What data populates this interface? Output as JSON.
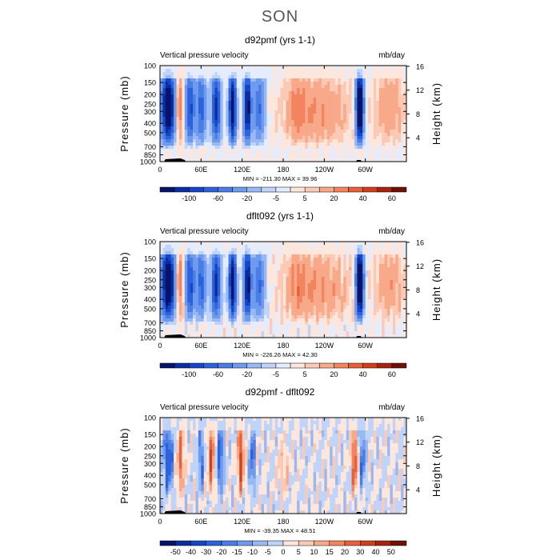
{
  "figure_title": "SON",
  "colors": {
    "frame": "#000000",
    "title_text": "#555555"
  },
  "chart_data": [
    {
      "type": "heatmap",
      "title": "d92pmf (yrs 1-1)",
      "left_label": "Vertical pressure velocity",
      "right_label": "mb/day",
      "ylabel": "Pressure (mb)",
      "ylabel_right": "Height (km)",
      "x_ticks": [
        "0",
        "60E",
        "120E",
        "180",
        "120W",
        "60W"
      ],
      "x_tick_lon": [
        0,
        60,
        120,
        180,
        240,
        300
      ],
      "xlim": [
        0,
        360
      ],
      "y_ticks": [
        "100",
        "150",
        "200",
        "250",
        "300",
        "400",
        "500",
        "700",
        "850",
        "1000"
      ],
      "y_tick_p": [
        100,
        150,
        200,
        250,
        300,
        400,
        500,
        700,
        850,
        1000
      ],
      "ylim": [
        100,
        1000
      ],
      "height_ticks": [
        "16",
        "12",
        "8",
        "4"
      ],
      "height_tick_km": [
        16,
        12,
        8,
        4
      ],
      "stats": "MIN = -211.30   MAX =  39.96",
      "colorbar_labels": [
        "-100",
        "-60",
        "-20",
        "-5",
        "5",
        "20",
        "40",
        "60"
      ],
      "levels": [
        -120,
        -100,
        -80,
        -60,
        -40,
        -20,
        -10,
        -5,
        0,
        5,
        10,
        20,
        30,
        40,
        50,
        60
      ],
      "colorbar_colors": [
        "#08136b",
        "#0a2ea0",
        "#1546c8",
        "#2c62dd",
        "#4a7ee6",
        "#6f9bee",
        "#98b9f4",
        "#c0d4fa",
        "#e4ecfd",
        "#fde6dc",
        "#fccab4",
        "#f8a989",
        "#f2855f",
        "#e8603a",
        "#d03f1c",
        "#a8240c",
        "#6e1004"
      ]
    },
    {
      "type": "heatmap",
      "title": "dflt092 (yrs 1-1)",
      "left_label": "Vertical pressure velocity",
      "right_label": "mb/day",
      "ylabel": "Pressure (mb)",
      "ylabel_right": "Height (km)",
      "x_ticks": [
        "0",
        "60E",
        "120E",
        "180",
        "120W",
        "60W"
      ],
      "x_tick_lon": [
        0,
        60,
        120,
        180,
        240,
        300
      ],
      "xlim": [
        0,
        360
      ],
      "y_ticks": [
        "100",
        "150",
        "200",
        "250",
        "300",
        "400",
        "500",
        "700",
        "850",
        "1000"
      ],
      "y_tick_p": [
        100,
        150,
        200,
        250,
        300,
        400,
        500,
        700,
        850,
        1000
      ],
      "ylim": [
        100,
        1000
      ],
      "height_ticks": [
        "16",
        "12",
        "8",
        "4"
      ],
      "height_tick_km": [
        16,
        12,
        8,
        4
      ],
      "stats": "MIN = -226.26   MAX =  42.30",
      "colorbar_labels": [
        "-100",
        "-60",
        "-20",
        "-5",
        "5",
        "20",
        "40",
        "60"
      ],
      "levels": [
        -120,
        -100,
        -80,
        -60,
        -40,
        -20,
        -10,
        -5,
        0,
        5,
        10,
        20,
        30,
        40,
        50,
        60
      ],
      "colorbar_colors": [
        "#08136b",
        "#0a2ea0",
        "#1546c8",
        "#2c62dd",
        "#4a7ee6",
        "#6f9bee",
        "#98b9f4",
        "#c0d4fa",
        "#e4ecfd",
        "#fde6dc",
        "#fccab4",
        "#f8a989",
        "#f2855f",
        "#e8603a",
        "#d03f1c",
        "#a8240c",
        "#6e1004"
      ]
    },
    {
      "type": "heatmap",
      "title": "d92pmf - dflt092",
      "left_label": "Vertical pressure velocity",
      "right_label": "mb/day",
      "ylabel": "Pressure (mb)",
      "ylabel_right": "Height (km)",
      "x_ticks": [
        "0",
        "60E",
        "120E",
        "180",
        "120W",
        "60W"
      ],
      "x_tick_lon": [
        0,
        60,
        120,
        180,
        240,
        300
      ],
      "xlim": [
        0,
        360
      ],
      "y_ticks": [
        "100",
        "150",
        "200",
        "250",
        "300",
        "400",
        "500",
        "700",
        "850",
        "1000"
      ],
      "y_tick_p": [
        100,
        150,
        200,
        250,
        300,
        400,
        500,
        700,
        850,
        1000
      ],
      "ylim": [
        100,
        1000
      ],
      "height_ticks": [
        "16",
        "12",
        "8",
        "4"
      ],
      "height_tick_km": [
        16,
        12,
        8,
        4
      ],
      "stats": "MIN = -39.35   MAX =  48.51",
      "colorbar_labels": [
        "-50",
        "-40",
        "-30",
        "-20",
        "-15",
        "-10",
        "-5",
        "0",
        "5",
        "10",
        "15",
        "20",
        "30",
        "40",
        "50"
      ],
      "levels": [
        -50,
        -40,
        -30,
        -20,
        -15,
        -10,
        -5,
        0,
        5,
        10,
        15,
        20,
        30,
        40,
        50
      ],
      "colorbar_colors": [
        "#08136b",
        "#0a2ea0",
        "#1546c8",
        "#2c62dd",
        "#4a7ee6",
        "#6f9bee",
        "#98b9f4",
        "#c0d4fa",
        "#fde6dc",
        "#fccab4",
        "#f8a989",
        "#f2855f",
        "#e8603a",
        "#d03f1c",
        "#a8240c",
        "#6e1004"
      ]
    }
  ]
}
